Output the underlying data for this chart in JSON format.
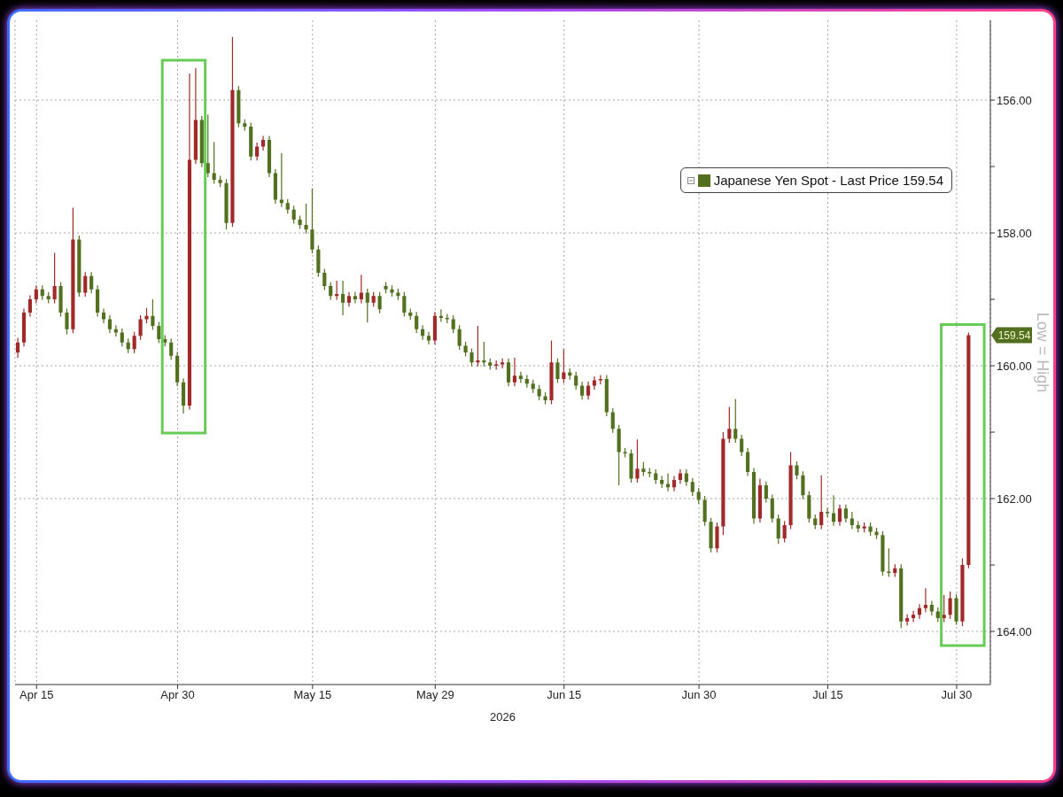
{
  "chart_data": {
    "type": "candlestick",
    "xlabel": "2026",
    "ylabel": "Low = High",
    "categories": [
      null,
      null,
      null,
      "Apr 15",
      null,
      null,
      null,
      null,
      null,
      null,
      null,
      null,
      null,
      null,
      null,
      null,
      null,
      null,
      null,
      null,
      null,
      null,
      null,
      null,
      null,
      null,
      "Apr 30",
      null,
      null,
      null,
      null,
      null,
      null,
      null,
      null,
      null,
      null,
      null,
      null,
      null,
      null,
      null,
      null,
      null,
      null,
      null,
      null,
      null,
      "May 15",
      null,
      null,
      null,
      null,
      null,
      null,
      null,
      null,
      null,
      null,
      null,
      null,
      null,
      null,
      null,
      null,
      null,
      null,
      null,
      "May 29",
      null,
      null,
      null,
      null,
      null,
      null,
      null,
      null,
      null,
      null,
      null,
      null,
      null,
      null,
      null,
      null,
      null,
      null,
      null,
      null,
      "Jun 15",
      null,
      null,
      null,
      null,
      null,
      null,
      null,
      null,
      null,
      null,
      null,
      null,
      null,
      null,
      null,
      null,
      null,
      null,
      null,
      null,
      null,
      "Jun 30",
      null,
      null,
      null,
      null,
      null,
      null,
      null,
      null,
      null,
      null,
      null,
      null,
      null,
      null,
      null,
      null,
      null,
      null,
      null,
      null,
      "Jul 15",
      null,
      null,
      null,
      null,
      null,
      null,
      null,
      null,
      null,
      null,
      null,
      null,
      null,
      null,
      null,
      null,
      null,
      null,
      null,
      null,
      "Jul 30",
      null,
      null,
      null,
      null,
      null
    ],
    "series": [
      {
        "name": "Japanese Yen Spot - Last Price 159.54",
        "color": "#52701f",
        "ohlc": [
          [
            159.8,
            159.88,
            159.58,
            159.65
          ],
          [
            159.65,
            159.71,
            159.14,
            159.2
          ],
          [
            159.2,
            159.26,
            158.94,
            159.0
          ],
          [
            159.0,
            159.06,
            158.79,
            158.85
          ],
          [
            158.85,
            159.01,
            158.79,
            158.95
          ],
          [
            158.95,
            159.06,
            158.89,
            159.0
          ],
          [
            159.0,
            159.06,
            158.3,
            158.8
          ],
          [
            158.8,
            159.26,
            158.74,
            159.2
          ],
          [
            159.2,
            159.53,
            159.14,
            159.45
          ],
          [
            159.45,
            159.51,
            157.62,
            158.1
          ],
          [
            158.1,
            158.96,
            158.04,
            158.9
          ],
          [
            158.9,
            158.96,
            158.59,
            158.65
          ],
          [
            158.65,
            158.91,
            158.59,
            158.85
          ],
          [
            158.85,
            159.26,
            158.79,
            159.2
          ],
          [
            159.2,
            159.36,
            159.14,
            159.3
          ],
          [
            159.3,
            159.51,
            159.24,
            159.45
          ],
          [
            159.45,
            159.56,
            159.39,
            159.5
          ],
          [
            159.5,
            159.71,
            159.44,
            159.65
          ],
          [
            159.65,
            159.81,
            159.59,
            159.75
          ],
          [
            159.75,
            159.81,
            159.49,
            159.55
          ],
          [
            159.55,
            159.61,
            159.24,
            159.3
          ],
          [
            159.3,
            159.36,
            159.13,
            159.25
          ],
          [
            159.25,
            159.46,
            159.0,
            159.4
          ],
          [
            159.4,
            159.66,
            159.34,
            159.6
          ],
          [
            159.6,
            159.71,
            159.54,
            159.65
          ],
          [
            159.65,
            159.91,
            159.59,
            159.85
          ],
          [
            159.85,
            160.31,
            159.79,
            160.25
          ],
          [
            160.25,
            160.72,
            160.19,
            160.6
          ],
          [
            160.6,
            160.66,
            155.6,
            156.9
          ],
          [
            156.9,
            156.96,
            155.52,
            156.3
          ],
          [
            156.3,
            157.01,
            156.24,
            156.95
          ],
          [
            156.95,
            157.16,
            156.22,
            157.1
          ],
          [
            157.1,
            157.26,
            156.63,
            157.2
          ],
          [
            157.2,
            157.31,
            157.14,
            157.25
          ],
          [
            157.25,
            157.95,
            157.19,
            157.85
          ],
          [
            157.85,
            157.91,
            155.05,
            155.85
          ],
          [
            155.85,
            156.41,
            155.79,
            156.35
          ],
          [
            156.35,
            156.46,
            156.29,
            156.4
          ],
          [
            156.4,
            156.91,
            156.34,
            156.85
          ],
          [
            156.85,
            156.91,
            156.64,
            156.7
          ],
          [
            156.7,
            156.76,
            156.54,
            156.6
          ],
          [
            156.6,
            157.16,
            156.54,
            157.1
          ],
          [
            157.1,
            157.56,
            157.04,
            157.5
          ],
          [
            157.5,
            157.61,
            156.8,
            157.55
          ],
          [
            157.55,
            157.71,
            157.49,
            157.65
          ],
          [
            157.65,
            157.86,
            157.59,
            157.8
          ],
          [
            157.8,
            157.94,
            157.74,
            157.88
          ],
          [
            157.88,
            158.01,
            157.56,
            157.95
          ],
          [
            157.95,
            158.31,
            157.33,
            158.25
          ],
          [
            158.25,
            158.66,
            158.19,
            158.6
          ],
          [
            158.6,
            158.86,
            158.54,
            158.8
          ],
          [
            158.8,
            159.01,
            158.74,
            158.95
          ],
          [
            158.95,
            159.01,
            158.72,
            158.92
          ],
          [
            158.92,
            159.24,
            158.72,
            159.05
          ],
          [
            159.05,
            159.11,
            158.89,
            158.95
          ],
          [
            158.95,
            159.06,
            158.89,
            159.0
          ],
          [
            159.0,
            159.06,
            158.63,
            158.9
          ],
          [
            158.9,
            159.35,
            158.84,
            159.05
          ],
          [
            159.05,
            159.11,
            158.89,
            158.95
          ],
          [
            158.95,
            159.21,
            158.89,
            159.15
          ],
          [
            158.8,
            158.91,
            158.74,
            158.85
          ],
          [
            158.85,
            158.96,
            158.79,
            158.9
          ],
          [
            158.9,
            159.01,
            158.84,
            158.95
          ],
          [
            158.95,
            159.26,
            158.89,
            159.2
          ],
          [
            159.2,
            159.31,
            159.14,
            159.25
          ],
          [
            159.25,
            159.51,
            159.19,
            159.45
          ],
          [
            159.45,
            159.61,
            159.39,
            159.55
          ],
          [
            159.55,
            159.68,
            159.49,
            159.62
          ],
          [
            159.62,
            159.68,
            159.19,
            159.25
          ],
          [
            159.25,
            159.34,
            159.15,
            159.28
          ],
          [
            159.28,
            159.36,
            159.22,
            159.3
          ],
          [
            159.3,
            159.51,
            159.24,
            159.45
          ],
          [
            159.45,
            159.76,
            159.39,
            159.7
          ],
          [
            159.7,
            159.86,
            159.64,
            159.8
          ],
          [
            159.8,
            160.01,
            159.74,
            159.95
          ],
          [
            159.95,
            160.01,
            159.4,
            159.92
          ],
          [
            159.92,
            160.01,
            159.64,
            159.95
          ],
          [
            159.95,
            160.06,
            159.89,
            160.0
          ],
          [
            160.0,
            160.06,
            159.92,
            159.98
          ],
          [
            159.98,
            160.04,
            159.89,
            159.95
          ],
          [
            159.95,
            160.31,
            159.89,
            160.25
          ],
          [
            160.25,
            160.31,
            159.88,
            160.15
          ],
          [
            160.15,
            160.26,
            160.09,
            160.2
          ],
          [
            160.2,
            160.33,
            160.14,
            160.27
          ],
          [
            160.27,
            160.41,
            160.21,
            160.35
          ],
          [
            160.35,
            160.52,
            160.29,
            160.46
          ],
          [
            160.46,
            160.58,
            160.4,
            160.52
          ],
          [
            160.52,
            160.58,
            159.62,
            159.95
          ],
          [
            159.95,
            160.26,
            159.89,
            160.2
          ],
          [
            160.2,
            160.26,
            159.75,
            160.1
          ],
          [
            160.1,
            160.21,
            160.04,
            160.15
          ],
          [
            160.15,
            160.36,
            160.09,
            160.3
          ],
          [
            160.3,
            160.51,
            160.24,
            160.45
          ],
          [
            160.45,
            160.51,
            160.24,
            160.3
          ],
          [
            160.3,
            160.36,
            160.16,
            160.22
          ],
          [
            160.22,
            160.28,
            160.14,
            160.2
          ],
          [
            160.2,
            160.76,
            160.14,
            160.7
          ],
          [
            160.7,
            161.01,
            160.64,
            160.95
          ],
          [
            160.95,
            161.8,
            160.89,
            161.3
          ],
          [
            161.3,
            161.38,
            161.24,
            161.32
          ],
          [
            161.32,
            161.76,
            161.26,
            161.7
          ],
          [
            161.7,
            161.76,
            161.11,
            161.55
          ],
          [
            161.55,
            161.66,
            161.45,
            161.6
          ],
          [
            161.6,
            161.68,
            161.54,
            161.62
          ],
          [
            161.62,
            161.78,
            161.56,
            161.72
          ],
          [
            161.72,
            161.84,
            161.66,
            161.78
          ],
          [
            161.78,
            161.89,
            161.62,
            161.83
          ],
          [
            161.83,
            161.89,
            161.66,
            161.72
          ],
          [
            161.72,
            161.78,
            161.56,
            161.62
          ],
          [
            161.62,
            161.81,
            161.56,
            161.75
          ],
          [
            161.75,
            161.96,
            161.69,
            161.9
          ],
          [
            161.9,
            162.08,
            161.84,
            162.02
          ],
          [
            162.02,
            162.41,
            161.96,
            162.35
          ],
          [
            162.35,
            162.81,
            162.29,
            162.75
          ],
          [
            162.75,
            162.81,
            162.36,
            162.42
          ],
          [
            162.42,
            162.55,
            161.0,
            161.1
          ],
          [
            161.1,
            161.16,
            160.62,
            160.95
          ],
          [
            160.95,
            161.16,
            160.5,
            161.1
          ],
          [
            161.1,
            161.36,
            161.04,
            161.3
          ],
          [
            161.3,
            161.66,
            161.24,
            161.6
          ],
          [
            161.6,
            162.38,
            161.54,
            162.3
          ],
          [
            162.3,
            162.36,
            161.7,
            161.8
          ],
          [
            161.8,
            162.06,
            161.74,
            162.0
          ],
          [
            162.0,
            162.36,
            161.94,
            162.3
          ],
          [
            162.3,
            162.68,
            162.24,
            162.6
          ],
          [
            162.6,
            162.66,
            162.34,
            162.4
          ],
          [
            162.4,
            162.46,
            161.3,
            161.5
          ],
          [
            161.5,
            161.71,
            161.44,
            161.65
          ],
          [
            161.65,
            162.01,
            161.59,
            161.95
          ],
          [
            161.95,
            162.36,
            161.89,
            162.3
          ],
          [
            162.3,
            162.46,
            162.24,
            162.4
          ],
          [
            162.4,
            162.46,
            161.65,
            162.2
          ],
          [
            162.2,
            162.28,
            162.14,
            162.22
          ],
          [
            162.22,
            162.41,
            161.95,
            162.35
          ],
          [
            162.35,
            162.41,
            162.09,
            162.15
          ],
          [
            162.15,
            162.36,
            162.09,
            162.3
          ],
          [
            162.3,
            162.46,
            162.2,
            162.4
          ],
          [
            162.4,
            162.51,
            162.34,
            162.45
          ],
          [
            162.45,
            162.51,
            162.36,
            162.42
          ],
          [
            162.42,
            162.56,
            162.36,
            162.5
          ],
          [
            162.5,
            162.61,
            162.44,
            162.55
          ],
          [
            162.55,
            163.16,
            162.49,
            163.1
          ],
          [
            163.1,
            163.18,
            162.75,
            163.12
          ],
          [
            163.12,
            163.18,
            162.99,
            163.05
          ],
          [
            163.05,
            163.95,
            162.99,
            163.85
          ],
          [
            163.85,
            163.91,
            163.74,
            163.8
          ],
          [
            163.8,
            163.86,
            163.69,
            163.75
          ],
          [
            163.75,
            163.81,
            163.59,
            163.65
          ],
          [
            163.65,
            163.71,
            163.35,
            163.6
          ],
          [
            163.6,
            163.76,
            163.54,
            163.7
          ],
          [
            163.7,
            163.86,
            163.64,
            163.8
          ],
          [
            163.8,
            163.86,
            163.45,
            163.75
          ],
          [
            163.75,
            163.81,
            163.4,
            163.5
          ],
          [
            163.5,
            163.9,
            163.44,
            163.85
          ],
          [
            163.85,
            163.92,
            162.9,
            163.0
          ],
          [
            163.0,
            163.05,
            159.5,
            159.54
          ],
          null,
          null,
          null
        ],
        "colors": [
          "#a0292a",
          "#a0292a",
          "#a0292a",
          "#a0292a",
          "#52701f",
          "#52701f",
          "#a0292a",
          "#52701f",
          "#52701f",
          "#a0292a",
          "#52701f",
          "#a0292a",
          "#52701f",
          "#52701f",
          "#52701f",
          "#52701f",
          "#52701f",
          "#52701f",
          "#52701f",
          "#a0292a",
          "#a0292a",
          "#a0292a",
          "#52701f",
          "#52701f",
          "#52701f",
          "#52701f",
          "#52701f",
          "#52701f",
          "#a0292a",
          "#a0292a",
          "#52701f",
          "#52701f",
          "#52701f",
          "#52701f",
          "#52701f",
          "#a0292a",
          "#52701f",
          "#52701f",
          "#52701f",
          "#a0292a",
          "#a0292a",
          "#52701f",
          "#52701f",
          "#52701f",
          "#52701f",
          "#52701f",
          "#52701f",
          "#52701f",
          "#52701f",
          "#52701f",
          "#52701f",
          "#52701f",
          "#a0292a",
          "#52701f",
          "#a0292a",
          "#52701f",
          "#a0292a",
          "#52701f",
          "#a0292a",
          "#52701f",
          "#52701f",
          "#52701f",
          "#52701f",
          "#52701f",
          "#52701f",
          "#52701f",
          "#52701f",
          "#52701f",
          "#a0292a",
          "#52701f",
          "#52701f",
          "#52701f",
          "#52701f",
          "#52701f",
          "#52701f",
          "#a0292a",
          "#52701f",
          "#52701f",
          "#a0292a",
          "#a0292a",
          "#52701f",
          "#a0292a",
          "#52701f",
          "#52701f",
          "#52701f",
          "#52701f",
          "#52701f",
          "#a0292a",
          "#52701f",
          "#a0292a",
          "#52701f",
          "#52701f",
          "#52701f",
          "#a0292a",
          "#a0292a",
          "#a0292a",
          "#52701f",
          "#52701f",
          "#52701f",
          "#52701f",
          "#52701f",
          "#a0292a",
          "#52701f",
          "#52701f",
          "#52701f",
          "#52701f",
          "#52701f",
          "#a0292a",
          "#a0292a",
          "#52701f",
          "#52701f",
          "#52701f",
          "#52701f",
          "#52701f",
          "#a0292a",
          "#a0292a",
          "#a0292a",
          "#52701f",
          "#52701f",
          "#52701f",
          "#52701f",
          "#a0292a",
          "#52701f",
          "#52701f",
          "#52701f",
          "#a0292a",
          "#a0292a",
          "#52701f",
          "#52701f",
          "#52701f",
          "#52701f",
          "#a0292a",
          "#52701f",
          "#52701f",
          "#a0292a",
          "#52701f",
          "#52701f",
          "#52701f",
          "#a0292a",
          "#52701f",
          "#52701f",
          "#52701f",
          "#52701f",
          "#a0292a",
          "#52701f",
          "#a0292a",
          "#a0292a",
          "#a0292a",
          "#a0292a",
          "#52701f",
          "#52701f",
          "#a0292a",
          "#a0292a",
          "#52701f",
          "#a0292a",
          "#a0292a",
          null,
          null,
          null
        ]
      }
    ],
    "ylim": [
      164.8,
      154.8
    ],
    "yticks": [
      {
        "value": 156,
        "label": "156.00"
      },
      {
        "value": 157,
        "label": null
      },
      {
        "value": 158,
        "label": "158.00"
      },
      {
        "value": 159,
        "label": null
      },
      {
        "value": 160,
        "label": "160.00"
      },
      {
        "value": 161,
        "label": null
      },
      {
        "value": 162,
        "label": "162.00"
      },
      {
        "value": 163,
        "label": null
      },
      {
        "value": 164,
        "label": "164.00"
      }
    ],
    "grid": true,
    "legend": "top right",
    "annotations": [
      "159.54"
    ]
  }
}
